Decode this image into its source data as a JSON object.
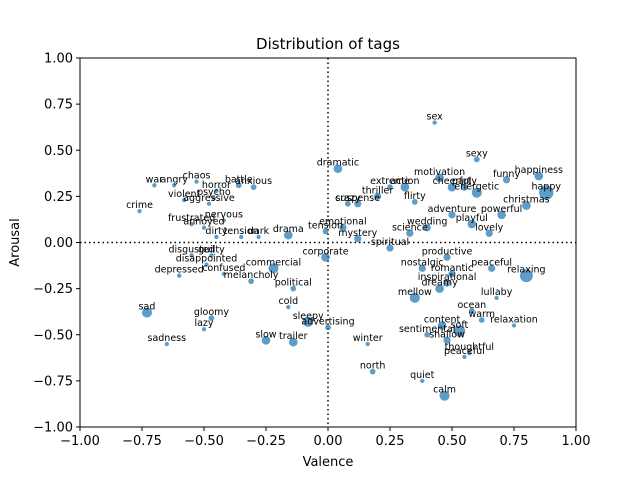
{
  "chart_data": {
    "type": "scatter",
    "title": "Distribution of tags",
    "xlabel": "Valence",
    "ylabel": "Arousal",
    "xlim": [
      -1.0,
      1.0
    ],
    "ylim": [
      -1.0,
      1.0
    ],
    "xticks": [
      "−1.00",
      "−0.75",
      "−0.50",
      "−0.25",
      "0.00",
      "0.25",
      "0.50",
      "0.75",
      "1.00"
    ],
    "yticks": [
      "−1.00",
      "−0.75",
      "−0.50",
      "−0.25",
      "0.00",
      "0.25",
      "0.50",
      "0.75",
      "1.00"
    ],
    "grid": false,
    "reference_lines": [
      {
        "axis": "x",
        "value": 0,
        "style": "dotted"
      },
      {
        "axis": "y",
        "value": 0,
        "style": "dotted"
      }
    ],
    "marker_color": "#1f77b4",
    "points": [
      {
        "label": "sex",
        "x": 0.43,
        "y": 0.65,
        "size": 3
      },
      {
        "label": "sexy",
        "x": 0.6,
        "y": 0.45,
        "size": 4
      },
      {
        "label": "happiness",
        "x": 0.85,
        "y": 0.36,
        "size": 6
      },
      {
        "label": "happy",
        "x": 0.88,
        "y": 0.27,
        "size": 10
      },
      {
        "label": "christmas",
        "x": 0.8,
        "y": 0.2,
        "size": 6
      },
      {
        "label": "energetic",
        "x": 0.6,
        "y": 0.27,
        "size": 7
      },
      {
        "label": "motivation",
        "x": 0.45,
        "y": 0.35,
        "size": 6
      },
      {
        "label": "cheerful",
        "x": 0.5,
        "y": 0.3,
        "size": 6
      },
      {
        "label": "party",
        "x": 0.55,
        "y": 0.3,
        "size": 5
      },
      {
        "label": "powerful",
        "x": 0.7,
        "y": 0.15,
        "size": 6
      },
      {
        "label": "funny",
        "x": 0.72,
        "y": 0.34,
        "size": 5
      },
      {
        "label": "dramatic",
        "x": 0.04,
        "y": 0.4,
        "size": 6
      },
      {
        "label": "war",
        "x": -0.7,
        "y": 0.31,
        "size": 3
      },
      {
        "label": "angry",
        "x": -0.62,
        "y": 0.31,
        "size": 3
      },
      {
        "label": "chaos",
        "x": -0.53,
        "y": 0.33,
        "size": 3
      },
      {
        "label": "battle",
        "x": -0.36,
        "y": 0.31,
        "size": 4
      },
      {
        "label": "anxious",
        "x": -0.3,
        "y": 0.3,
        "size": 4
      },
      {
        "label": "horror",
        "x": -0.45,
        "y": 0.28,
        "size": 3
      },
      {
        "label": "violent",
        "x": -0.58,
        "y": 0.23,
        "size": 3
      },
      {
        "label": "psycho",
        "x": -0.46,
        "y": 0.24,
        "size": 3
      },
      {
        "label": "aggressive",
        "x": -0.48,
        "y": 0.21,
        "size": 3
      },
      {
        "label": "crime",
        "x": -0.76,
        "y": 0.17,
        "size": 3
      },
      {
        "label": "frustrated",
        "x": -0.55,
        "y": 0.1,
        "size": 3
      },
      {
        "label": "annoyed",
        "x": -0.5,
        "y": 0.08,
        "size": 3
      },
      {
        "label": "nervous",
        "x": -0.42,
        "y": 0.12,
        "size": 3
      },
      {
        "label": "dirty",
        "x": -0.45,
        "y": 0.03,
        "size": 3
      },
      {
        "label": "tension",
        "x": -0.35,
        "y": 0.03,
        "size": 3
      },
      {
        "label": "dark",
        "x": -0.28,
        "y": 0.03,
        "size": 3
      },
      {
        "label": "drama",
        "x": -0.16,
        "y": 0.04,
        "size": 6
      },
      {
        "label": "extreme",
        "x": 0.25,
        "y": 0.3,
        "size": 4
      },
      {
        "label": "action",
        "x": 0.31,
        "y": 0.3,
        "size": 6
      },
      {
        "label": "thriller",
        "x": 0.2,
        "y": 0.25,
        "size": 5
      },
      {
        "label": "suspense",
        "x": 0.12,
        "y": 0.21,
        "size": 5
      },
      {
        "label": "crazy",
        "x": 0.08,
        "y": 0.21,
        "size": 4
      },
      {
        "label": "flirty",
        "x": 0.35,
        "y": 0.22,
        "size": 4
      },
      {
        "label": "emotional",
        "x": 0.06,
        "y": 0.08,
        "size": 5
      },
      {
        "label": "tension",
        "x": -0.01,
        "y": 0.06,
        "size": 4
      },
      {
        "label": "mystery",
        "x": 0.12,
        "y": 0.02,
        "size": 5
      },
      {
        "label": "spiritual",
        "x": 0.25,
        "y": -0.03,
        "size": 5
      },
      {
        "label": "disgusted",
        "x": -0.55,
        "y": -0.07,
        "size": 3
      },
      {
        "label": "guilty",
        "x": -0.47,
        "y": -0.07,
        "size": 3
      },
      {
        "label": "disappointed",
        "x": -0.49,
        "y": -0.12,
        "size": 3
      },
      {
        "label": "depressed",
        "x": -0.6,
        "y": -0.18,
        "size": 3
      },
      {
        "label": "confused",
        "x": -0.42,
        "y": -0.17,
        "size": 3
      },
      {
        "label": "commercial",
        "x": -0.22,
        "y": -0.14,
        "size": 7
      },
      {
        "label": "corporate",
        "x": -0.01,
        "y": -0.08,
        "size": 6
      },
      {
        "label": "melancholy",
        "x": -0.31,
        "y": -0.21,
        "size": 4
      },
      {
        "label": "political",
        "x": -0.14,
        "y": -0.25,
        "size": 4
      },
      {
        "label": "sad",
        "x": -0.73,
        "y": -0.38,
        "size": 7
      },
      {
        "label": "gloomy",
        "x": -0.47,
        "y": -0.41,
        "size": 4
      },
      {
        "label": "lazy",
        "x": -0.5,
        "y": -0.47,
        "size": 3
      },
      {
        "label": "sadness",
        "x": -0.65,
        "y": -0.55,
        "size": 3
      },
      {
        "label": "cold",
        "x": -0.16,
        "y": -0.35,
        "size": 3
      },
      {
        "label": "sleepy",
        "x": -0.08,
        "y": -0.43,
        "size": 7
      },
      {
        "label": "slow",
        "x": -0.25,
        "y": -0.53,
        "size": 6
      },
      {
        "label": "trailer",
        "x": -0.14,
        "y": -0.54,
        "size": 6
      },
      {
        "label": "advertising",
        "x": 0.0,
        "y": -0.46,
        "size": 4
      },
      {
        "label": "winter",
        "x": 0.16,
        "y": -0.55,
        "size": 3
      },
      {
        "label": "sentimental",
        "x": 0.4,
        "y": -0.5,
        "size": 4
      },
      {
        "label": "shallow",
        "x": 0.48,
        "y": -0.53,
        "size": 5
      },
      {
        "label": "soft",
        "x": 0.53,
        "y": -0.48,
        "size": 8
      },
      {
        "label": "content",
        "x": 0.46,
        "y": -0.45,
        "size": 6
      },
      {
        "label": "ocean",
        "x": 0.58,
        "y": -0.37,
        "size": 4
      },
      {
        "label": "warm",
        "x": 0.62,
        "y": -0.42,
        "size": 4
      },
      {
        "label": "lullaby",
        "x": 0.68,
        "y": -0.3,
        "size": 3
      },
      {
        "label": "relaxation",
        "x": 0.75,
        "y": -0.45,
        "size": 3
      },
      {
        "label": "thoughtful",
        "x": 0.57,
        "y": -0.6,
        "size": 3
      },
      {
        "label": "peaceful",
        "x": 0.55,
        "y": -0.62,
        "size": 3
      },
      {
        "label": "relaxing",
        "x": 0.8,
        "y": -0.18,
        "size": 9
      },
      {
        "label": "peaceful",
        "x": 0.66,
        "y": -0.14,
        "size": 5
      },
      {
        "label": "north",
        "x": 0.18,
        "y": -0.7,
        "size": 4
      },
      {
        "label": "quiet",
        "x": 0.38,
        "y": -0.75,
        "size": 3
      },
      {
        "label": "calm",
        "x": 0.47,
        "y": -0.83,
        "size": 7
      },
      {
        "label": "nostalgic",
        "x": 0.38,
        "y": -0.14,
        "size": 5
      },
      {
        "label": "romantic",
        "x": 0.5,
        "y": -0.17,
        "size": 5
      },
      {
        "label": "dreamy",
        "x": 0.45,
        "y": -0.25,
        "size": 6
      },
      {
        "label": "productive",
        "x": 0.48,
        "y": -0.08,
        "size": 5
      },
      {
        "label": "mellow",
        "x": 0.35,
        "y": -0.3,
        "size": 7
      },
      {
        "label": "inspirational",
        "x": 0.48,
        "y": -0.22,
        "size": 5
      },
      {
        "label": "playful",
        "x": 0.58,
        "y": 0.1,
        "size": 6
      },
      {
        "label": "lovely",
        "x": 0.65,
        "y": 0.05,
        "size": 5
      },
      {
        "label": "adventure",
        "x": 0.5,
        "y": 0.15,
        "size": 5
      },
      {
        "label": "science",
        "x": 0.33,
        "y": 0.05,
        "size": 5
      },
      {
        "label": "wedding",
        "x": 0.4,
        "y": 0.08,
        "size": 5
      }
    ]
  }
}
